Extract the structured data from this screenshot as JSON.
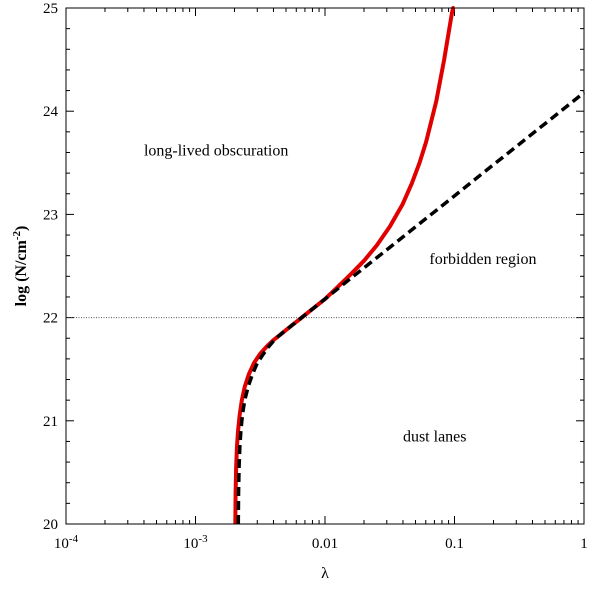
{
  "chart_data": {
    "type": "line",
    "title": "",
    "xlabel": "λ",
    "ylabel": "log (N/cm",
    "ylabel_sup": "-2",
    "ylabel_close": ")",
    "xscale": "log",
    "xlim": [
      0.0001,
      1
    ],
    "ylim": [
      20,
      25
    ],
    "grid": false,
    "x_ticks": [
      {
        "value": 0.0001,
        "base": "10",
        "exp": "-4"
      },
      {
        "value": 0.001,
        "base": "10",
        "exp": "-3"
      },
      {
        "value": 0.01,
        "base": "0.01",
        "exp": ""
      },
      {
        "value": 0.1,
        "base": "0.1",
        "exp": ""
      },
      {
        "value": 1,
        "base": "1",
        "exp": ""
      }
    ],
    "y_ticks": [
      {
        "value": 20,
        "label": "20"
      },
      {
        "value": 21,
        "label": "21"
      },
      {
        "value": 22,
        "label": "22"
      },
      {
        "value": 23,
        "label": "23"
      },
      {
        "value": 24,
        "label": "24"
      },
      {
        "value": 25,
        "label": "25"
      }
    ],
    "reference_line": {
      "y": 22,
      "style": "dotted",
      "color": "#555555"
    },
    "series": [
      {
        "style": "solid",
        "color": "#e00000",
        "x": [
          0.00203,
          0.00204,
          0.00206,
          0.00209,
          0.00213,
          0.00219,
          0.00228,
          0.0024,
          0.00258,
          0.00283,
          0.00316,
          0.00355,
          0.00398,
          0.00447,
          0.00501,
          0.00562,
          0.00631,
          0.00708,
          0.00794,
          0.00891,
          0.01,
          0.0126,
          0.0158,
          0.02,
          0.0251,
          0.0316,
          0.0398,
          0.0468,
          0.0537,
          0.0603,
          0.0661,
          0.0724,
          0.0776,
          0.0832,
          0.0871,
          0.0912,
          0.0955,
          0.0977,
          0.1
        ],
        "y": [
          20.0,
          20.3,
          20.55,
          20.75,
          20.9,
          21.05,
          21.2,
          21.33,
          21.45,
          21.56,
          21.65,
          21.72,
          21.78,
          21.83,
          21.88,
          21.93,
          21.98,
          22.03,
          22.08,
          22.13,
          22.18,
          22.3,
          22.42,
          22.55,
          22.7,
          22.88,
          23.1,
          23.3,
          23.5,
          23.7,
          23.9,
          24.1,
          24.3,
          24.5,
          24.65,
          24.8,
          24.95,
          25.0,
          25.0
        ]
      },
      {
        "style": "dashed",
        "color": "#000000",
        "x": [
          0.00214,
          0.00215,
          0.00217,
          0.0022,
          0.00224,
          0.0023,
          0.0024,
          0.00255,
          0.00275,
          0.003,
          0.00331,
          0.00363,
          0.00398,
          0.00437,
          0.00479,
          0.00525,
          0.00575,
          0.00631,
          0.00692,
          0.00759,
          0.00832,
          0.00912,
          0.01,
          0.0158,
          0.0251,
          0.0398,
          0.0631,
          0.1,
          0.158,
          0.251,
          0.398,
          0.631,
          1.0
        ],
        "y": [
          20.0,
          20.3,
          20.55,
          20.75,
          20.9,
          21.05,
          21.2,
          21.33,
          21.45,
          21.56,
          21.64,
          21.71,
          21.77,
          21.82,
          21.86,
          21.9,
          21.94,
          21.98,
          22.02,
          22.06,
          22.1,
          22.14,
          22.18,
          22.38,
          22.58,
          22.78,
          22.98,
          23.18,
          23.38,
          23.58,
          23.78,
          23.98,
          24.18
        ]
      }
    ],
    "annotations": [
      {
        "text": "long-lived obscuration",
        "x": 0.0004,
        "y": 23.62
      },
      {
        "text": "forbidden region",
        "x": 0.064,
        "y": 22.57
      },
      {
        "text": "dust lanes",
        "x": 0.04,
        "y": 20.85
      }
    ]
  }
}
